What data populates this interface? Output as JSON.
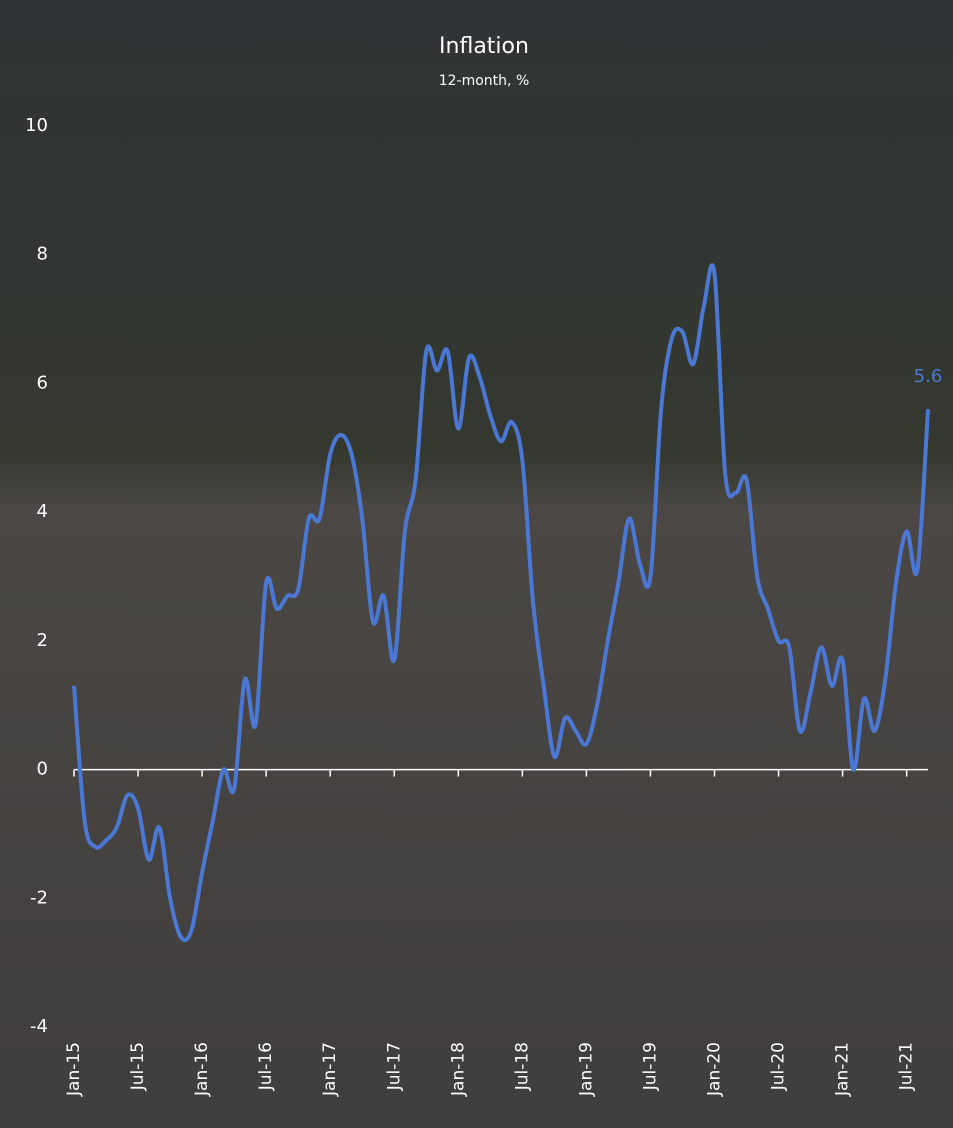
{
  "chart_data": {
    "type": "line",
    "title": "Inflation",
    "subtitle": "12-month, %",
    "categories": [
      "Jan-15",
      null,
      null,
      null,
      null,
      null,
      "Jul-15",
      null,
      null,
      null,
      null,
      null,
      "Jan-16",
      null,
      null,
      null,
      null,
      null,
      "Jul-16",
      null,
      null,
      null,
      null,
      null,
      "Jan-17",
      null,
      null,
      null,
      null,
      null,
      "Jul-17",
      null,
      null,
      null,
      null,
      null,
      "Jan-18",
      null,
      null,
      null,
      null,
      null,
      "Jul-18",
      null,
      null,
      null,
      null,
      null,
      "Jan-19",
      null,
      null,
      null,
      null,
      null,
      "Jul-19",
      null,
      null,
      null,
      null,
      null,
      "Jan-20",
      null,
      null,
      null,
      null,
      null,
      "Jul-20",
      null,
      null,
      null,
      null,
      null,
      "Jan-21",
      null,
      null,
      null,
      null,
      null,
      "Jul-21",
      null,
      null
    ],
    "series": [
      {
        "name": "Inflation",
        "color": "#4a78d4",
        "values": [
          1.3,
          -0.8,
          -1.2,
          -1.1,
          -0.9,
          -0.4,
          -0.6,
          -1.4,
          -0.9,
          -2.0,
          -2.6,
          -2.5,
          -1.6,
          -0.8,
          0.0,
          -0.3,
          1.4,
          0.7,
          2.9,
          2.5,
          2.7,
          2.8,
          3.9,
          3.9,
          4.9,
          5.2,
          4.9,
          3.9,
          2.3,
          2.7,
          1.7,
          3.7,
          4.5,
          6.5,
          6.2,
          6.5,
          5.3,
          6.4,
          6.1,
          5.5,
          5.1,
          5.4,
          4.8,
          2.6,
          1.3,
          0.2,
          0.8,
          0.6,
          0.4,
          1.0,
          2.0,
          2.9,
          3.9,
          3.2,
          3.0,
          5.6,
          6.7,
          6.8,
          6.3,
          7.2,
          7.7,
          4.6,
          4.3,
          4.5,
          3.0,
          2.5,
          2.0,
          1.9,
          0.6,
          1.2,
          1.9,
          1.3,
          1.7,
          0.0,
          1.1,
          0.6,
          1.4,
          2.9,
          3.7,
          3.1,
          5.6
        ]
      }
    ],
    "ylim": [
      -4,
      10
    ],
    "yticks": [
      -4,
      -2,
      0,
      2,
      4,
      6,
      8,
      10
    ],
    "grid": false
  }
}
